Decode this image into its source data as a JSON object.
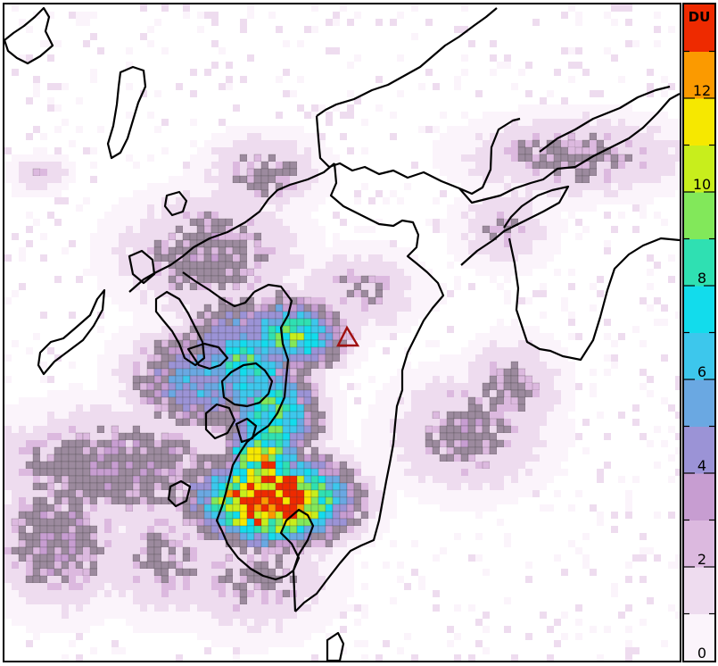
{
  "colorbar": {
    "unit": "DU",
    "min": 0,
    "max": 14,
    "tick_labels": [
      "0",
      "2",
      "4",
      "6",
      "8",
      "10",
      "12"
    ],
    "tick_values": [
      0,
      2,
      4,
      6,
      8,
      10,
      12
    ],
    "segments": [
      {
        "from": 0,
        "to": 1,
        "color": "#fbf4fb"
      },
      {
        "from": 1,
        "to": 2,
        "color": "#eedcef"
      },
      {
        "from": 2,
        "to": 3,
        "color": "#dcb9df"
      },
      {
        "from": 3,
        "to": 4,
        "color": "#c79dd1"
      },
      {
        "from": 4,
        "to": 5,
        "color": "#9b93d6"
      },
      {
        "from": 5,
        "to": 6,
        "color": "#6aa8e2"
      },
      {
        "from": 6,
        "to": 7,
        "color": "#3dc7ec"
      },
      {
        "from": 7,
        "to": 8,
        "color": "#12dcec"
      },
      {
        "from": 8,
        "to": 9,
        "color": "#2fe0b2"
      },
      {
        "from": 9,
        "to": 10,
        "color": "#82e85a"
      },
      {
        "from": 10,
        "to": 11,
        "color": "#c8ee1c"
      },
      {
        "from": 11,
        "to": 12,
        "color": "#f6e800"
      },
      {
        "from": 12,
        "to": 13,
        "color": "#fb9a00"
      },
      {
        "from": 13,
        "to": 14,
        "color": "#ee2a00"
      }
    ]
  },
  "map": {
    "volcano_marker": "triangle-outline",
    "volcano_color": "#a01010",
    "coastline_color": "#000000"
  }
}
